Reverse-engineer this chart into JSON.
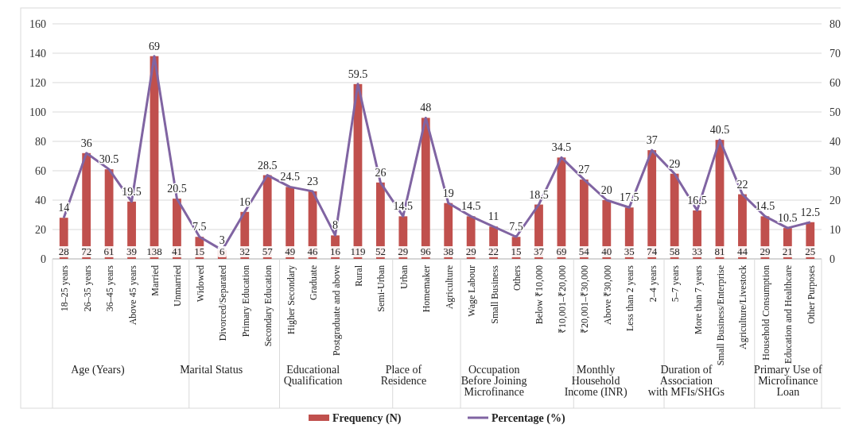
{
  "chart_data": {
    "type": "bar",
    "categories": [
      "18–25 years",
      "26–35 years",
      "36–45 years",
      "Above 45 years",
      "Married",
      "Unmarried",
      "Widowed",
      "Divorced/Separated",
      "Primary Education",
      "Secondary Education",
      "Higher Secondary",
      "Graduate",
      "Postgraduate and above",
      "Rural",
      "Semi-Urban",
      "Urban",
      "Homemaker",
      "Agriculture",
      "Wage Labour",
      "Small Business",
      "Others",
      "Below ₹10,000",
      "₹10,001–₹20,000",
      "₹20,001–₹30,000",
      "Above ₹30,000",
      "Less than 2 years",
      "2–4 years",
      "5–7 years",
      "More than 7 years",
      "Small Business/Enterprise",
      "Agriculture/Livestock",
      "Household Consumption",
      "Education and Healthcare",
      "Other Purposes"
    ],
    "series": [
      {
        "name": "Frequency (N)",
        "color": "#c0504d",
        "values": [
          28,
          72,
          61,
          39,
          138,
          41,
          15,
          6,
          32,
          57,
          49,
          46,
          16,
          119,
          52,
          29,
          96,
          38,
          29,
          22,
          15,
          37,
          69,
          54,
          40,
          35,
          74,
          58,
          33,
          81,
          44,
          29,
          21,
          25
        ]
      },
      {
        "name": "Percentage (%)",
        "type": "line",
        "axis": "y2",
        "color": "#8064a2",
        "values": [
          14,
          36,
          30.5,
          19.5,
          69,
          20.5,
          7.5,
          3,
          16,
          28.5,
          24.5,
          23,
          8,
          59.5,
          26,
          14.5,
          48,
          19,
          14.5,
          11,
          7.5,
          18.5,
          34.5,
          27,
          20,
          17.5,
          37,
          29,
          16.5,
          40.5,
          22,
          14.5,
          10.5,
          12.5
        ]
      }
    ],
    "ylim": [
      0,
      160
    ],
    "yticks": [
      0,
      20,
      40,
      60,
      80,
      100,
      120,
      140,
      160
    ],
    "y2lim": [
      0,
      80
    ],
    "y2ticks": [
      0,
      10,
      20,
      30,
      40,
      50,
      60,
      70,
      80
    ],
    "grid": "y",
    "legend": "bottom",
    "data_labels": true,
    "marker": "none",
    "line_style": "solid",
    "annotations": [
      "Age (Years)",
      "Marital Status",
      "Educational Qualification",
      "Place of Residence",
      "Occupation Before Joining Microfinance",
      "Monthly Household Income (INR)",
      "Duration of Association with MFIs/SHGs",
      "Primary Use of Microfinance Loan"
    ]
  }
}
